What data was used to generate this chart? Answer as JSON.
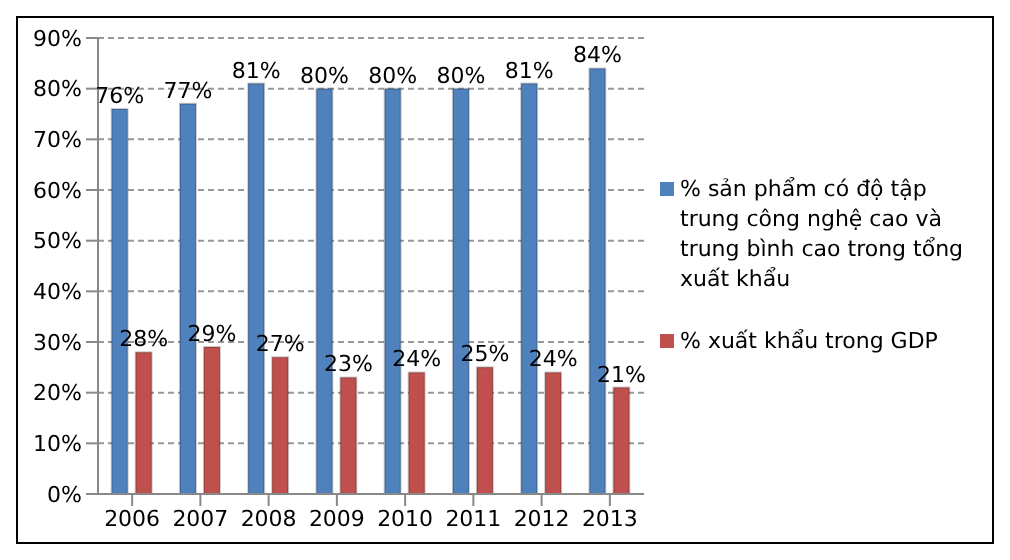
{
  "chart_data": {
    "type": "bar",
    "categories": [
      "2006",
      "2007",
      "2008",
      "2009",
      "2010",
      "2011",
      "2012",
      "2013"
    ],
    "series": [
      {
        "name": "% sản phẩm có độ tập trung công nghệ cao và trung bình cao trong tổng xuất khẩu",
        "color": "#4f81bd",
        "values": [
          76,
          77,
          81,
          80,
          80,
          80,
          81,
          84
        ],
        "value_labels": [
          "76%",
          "77%",
          "81%",
          "80%",
          "80%",
          "80%",
          "81%",
          "84%"
        ]
      },
      {
        "name": "% xuất khẩu trong GDP",
        "color": "#c0504d",
        "values": [
          28,
          29,
          27,
          23,
          24,
          25,
          24,
          21
        ],
        "value_labels": [
          "28%",
          "29%",
          "27%",
          "23%",
          "24%",
          "25%",
          "24%",
          "21%"
        ]
      }
    ],
    "ylim": [
      0,
      90
    ],
    "yticks": [
      {
        "value": 0,
        "label": "0%"
      },
      {
        "value": 10,
        "label": "10%"
      },
      {
        "value": 20,
        "label": "20%"
      },
      {
        "value": 30,
        "label": "30%"
      },
      {
        "value": 40,
        "label": "40%"
      },
      {
        "value": 50,
        "label": "50%"
      },
      {
        "value": 60,
        "label": "60%"
      },
      {
        "value": 70,
        "label": "70%"
      },
      {
        "value": 80,
        "label": "80%"
      },
      {
        "value": 90,
        "label": "90%"
      }
    ],
    "grid": "y",
    "legend": "right"
  }
}
